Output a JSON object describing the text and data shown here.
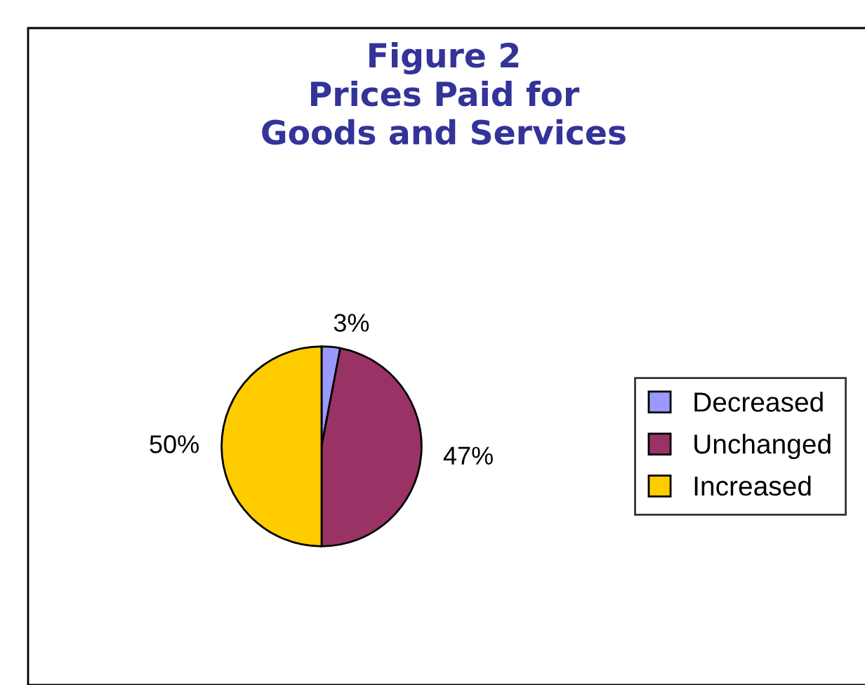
{
  "chart_data": {
    "type": "pie",
    "title": "Figure 2\nPrices Paid for\nGoods and Services",
    "categories": [
      "Decreased",
      "Unchanged",
      "Increased"
    ],
    "values": [
      3,
      47,
      50
    ],
    "colors": [
      "#9999ff",
      "#993366",
      "#ffcc00"
    ],
    "value_labels": [
      "3%",
      "47%",
      "50%"
    ],
    "legend": "right"
  }
}
